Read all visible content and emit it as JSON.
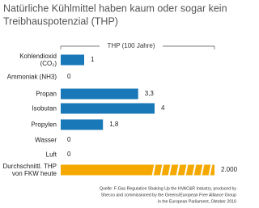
{
  "chart_data": {
    "type": "bar",
    "orientation": "horizontal",
    "title": [
      "Natürliche Kühlmittel haben kaum oder sogar kein",
      "Treibhauspotenzial (THP)"
    ],
    "axis_label": "THP (100 Jahre)",
    "categories": [
      "Kohlendioxid\n(CO₂)",
      "Ammoniak (NH3)",
      "Propan",
      "Isobutan",
      "Propylen",
      "Wasser",
      "Luft",
      "Durchschnittl. THP\nvon FKW heute"
    ],
    "values": [
      1,
      0,
      3.3,
      4,
      1.8,
      0,
      0,
      2000
    ],
    "value_labels": [
      "1",
      "0",
      "3,3",
      "4",
      "1,8",
      "0",
      "0",
      "2.000"
    ],
    "colors": [
      "#1878b8",
      "#1878b8",
      "#1878b8",
      "#1878b8",
      "#1878b8",
      "#1878b8",
      "#1878b8",
      "#f5a900"
    ],
    "source": [
      "Quelle: F-Gas Regulation Shaking Up the HVAC&R Industry, produced by",
      "Shecco and commissioned by the Greens/European Free Alliance Group",
      "in the European Parliament, Oktober 2016"
    ]
  }
}
